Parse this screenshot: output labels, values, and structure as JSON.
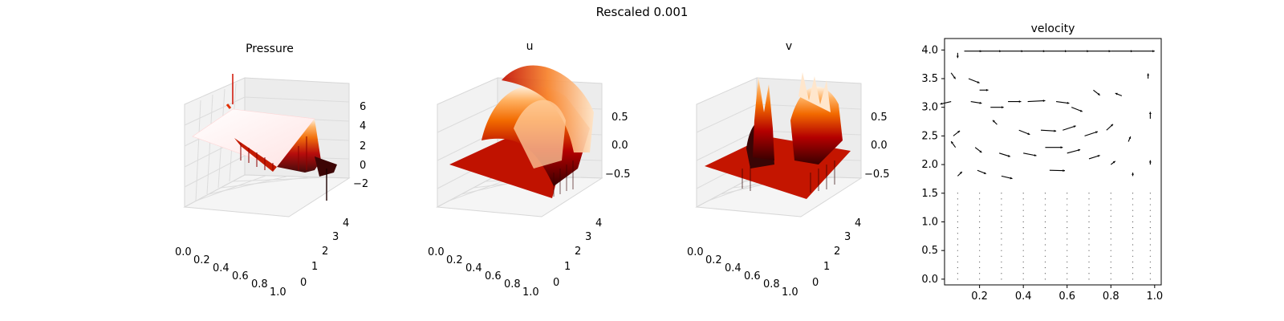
{
  "figure": {
    "suptitle": "Rescaled 0.001"
  },
  "chart_data": [
    {
      "type": "surface3d",
      "title": "Pressure",
      "x_ticks": [
        "0.0",
        "0.2",
        "0.4",
        "0.6",
        "0.8",
        "1.0"
      ],
      "y_ticks": [
        "0",
        "1",
        "2",
        "3",
        "4"
      ],
      "z_ticks": [
        "−2",
        "0",
        "2",
        "4",
        "6"
      ],
      "xlim": [
        0,
        1
      ],
      "ylim": [
        0,
        4
      ],
      "zlim": [
        -3.2,
        7.5
      ],
      "colormap": "gist_heat",
      "description_values": {
        "plateau_z": 2.0,
        "spike_max_z": 7.0,
        "dip_min_z": -3.0
      }
    },
    {
      "type": "surface3d",
      "title": "u",
      "x_ticks": [
        "0.0",
        "0.2",
        "0.4",
        "0.6",
        "0.8",
        "1.0"
      ],
      "y_ticks": [
        "0",
        "1",
        "2",
        "3",
        "4"
      ],
      "z_ticks": [
        "−0.5",
        "0.0",
        "0.5"
      ],
      "xlim": [
        0,
        1
      ],
      "ylim": [
        0,
        4
      ],
      "zlim": [
        -1.0,
        0.9
      ],
      "colormap": "gist_heat"
    },
    {
      "type": "surface3d",
      "title": "v",
      "x_ticks": [
        "0.0",
        "0.2",
        "0.4",
        "0.6",
        "0.8",
        "1.0"
      ],
      "y_ticks": [
        "0",
        "1",
        "2",
        "3",
        "4"
      ],
      "z_ticks": [
        "−0.5",
        "0.0",
        "0.5"
      ],
      "xlim": [
        0,
        1
      ],
      "ylim": [
        0,
        4
      ],
      "zlim": [
        -1.0,
        0.9
      ],
      "colormap": "gist_heat"
    },
    {
      "type": "quiver",
      "title": "velocity",
      "x_ticks": [
        "0.2",
        "0.4",
        "0.6",
        "0.8",
        "1.0"
      ],
      "y_ticks": [
        "0.0",
        "0.5",
        "1.0",
        "1.5",
        "2.0",
        "2.5",
        "3.0",
        "3.5",
        "4.0"
      ],
      "xlim": [
        0.04,
        1.03
      ],
      "ylim": [
        -0.1,
        4.2
      ],
      "arrow_color": "#000000",
      "arrows": [
        {
          "x": 0.1,
          "y": 3.95,
          "u": 0.0,
          "v": -0.3
        },
        {
          "x": 0.13,
          "y": 3.98,
          "u": 0.08,
          "v": 0.0
        },
        {
          "x": 0.2,
          "y": 3.98,
          "u": 0.1,
          "v": 0.0
        },
        {
          "x": 0.3,
          "y": 3.98,
          "u": 0.1,
          "v": 0.0
        },
        {
          "x": 0.4,
          "y": 3.98,
          "u": 0.1,
          "v": 0.0
        },
        {
          "x": 0.5,
          "y": 3.98,
          "u": 0.1,
          "v": 0.0
        },
        {
          "x": 0.6,
          "y": 3.98,
          "u": 0.1,
          "v": 0.0
        },
        {
          "x": 0.7,
          "y": 3.98,
          "u": 0.1,
          "v": 0.0
        },
        {
          "x": 0.8,
          "y": 3.98,
          "u": 0.1,
          "v": 0.0
        },
        {
          "x": 0.9,
          "y": 3.98,
          "u": 0.1,
          "v": 0.0
        },
        {
          "x": 0.07,
          "y": 3.6,
          "u": 0.02,
          "v": -0.35
        },
        {
          "x": 0.07,
          "y": 3.1,
          "u": -0.05,
          "v": -0.15
        },
        {
          "x": 0.08,
          "y": 2.5,
          "u": 0.03,
          "v": 0.3
        },
        {
          "x": 0.09,
          "y": 2.3,
          "u": -0.02,
          "v": 0.35
        },
        {
          "x": 0.1,
          "y": 1.8,
          "u": 0.02,
          "v": 0.25
        },
        {
          "x": 0.15,
          "y": 3.5,
          "u": 0.05,
          "v": -0.25
        },
        {
          "x": 0.16,
          "y": 3.1,
          "u": 0.05,
          "v": -0.1
        },
        {
          "x": 0.18,
          "y": 2.3,
          "u": 0.03,
          "v": -0.3
        },
        {
          "x": 0.19,
          "y": 1.9,
          "u": 0.04,
          "v": -0.2
        },
        {
          "x": 0.2,
          "y": 3.3,
          "u": 0.04,
          "v": 0.0
        },
        {
          "x": 0.25,
          "y": 3.0,
          "u": 0.06,
          "v": 0.0
        },
        {
          "x": 0.28,
          "y": 2.7,
          "u": -0.02,
          "v": 0.25
        },
        {
          "x": 0.29,
          "y": 2.2,
          "u": 0.05,
          "v": -0.2
        },
        {
          "x": 0.3,
          "y": 1.8,
          "u": 0.05,
          "v": -0.15
        },
        {
          "x": 0.33,
          "y": 3.1,
          "u": 0.06,
          "v": 0.0
        },
        {
          "x": 0.38,
          "y": 2.6,
          "u": 0.05,
          "v": -0.25
        },
        {
          "x": 0.4,
          "y": 2.2,
          "u": 0.06,
          "v": -0.15
        },
        {
          "x": 0.42,
          "y": 3.1,
          "u": 0.08,
          "v": 0.05
        },
        {
          "x": 0.48,
          "y": 2.6,
          "u": 0.07,
          "v": -0.05
        },
        {
          "x": 0.5,
          "y": 2.3,
          "u": 0.08,
          "v": 0.0
        },
        {
          "x": 0.52,
          "y": 1.9,
          "u": 0.07,
          "v": -0.02
        },
        {
          "x": 0.55,
          "y": 3.1,
          "u": 0.06,
          "v": -0.1
        },
        {
          "x": 0.58,
          "y": 2.6,
          "u": 0.06,
          "v": 0.25
        },
        {
          "x": 0.6,
          "y": 2.2,
          "u": 0.06,
          "v": 0.2
        },
        {
          "x": 0.62,
          "y": 3.0,
          "u": 0.05,
          "v": -0.25
        },
        {
          "x": 0.68,
          "y": 2.5,
          "u": 0.06,
          "v": 0.25
        },
        {
          "x": 0.7,
          "y": 2.1,
          "u": 0.05,
          "v": 0.2
        },
        {
          "x": 0.72,
          "y": 3.3,
          "u": 0.03,
          "v": -0.3
        },
        {
          "x": 0.78,
          "y": 2.6,
          "u": 0.03,
          "v": 0.35
        },
        {
          "x": 0.8,
          "y": 2.0,
          "u": 0.02,
          "v": 0.2
        },
        {
          "x": 0.85,
          "y": 3.2,
          "u": -0.03,
          "v": 0.15
        },
        {
          "x": 0.88,
          "y": 2.4,
          "u": 0.01,
          "v": 0.3
        },
        {
          "x": 0.9,
          "y": 1.8,
          "u": 0.0,
          "v": 0.2
        },
        {
          "x": 0.97,
          "y": 3.5,
          "u": 0.0,
          "v": 0.3
        },
        {
          "x": 0.98,
          "y": 2.8,
          "u": 0.0,
          "v": 0.4
        },
        {
          "x": 0.98,
          "y": 2.0,
          "u": 0.0,
          "v": 0.25
        }
      ]
    }
  ]
}
